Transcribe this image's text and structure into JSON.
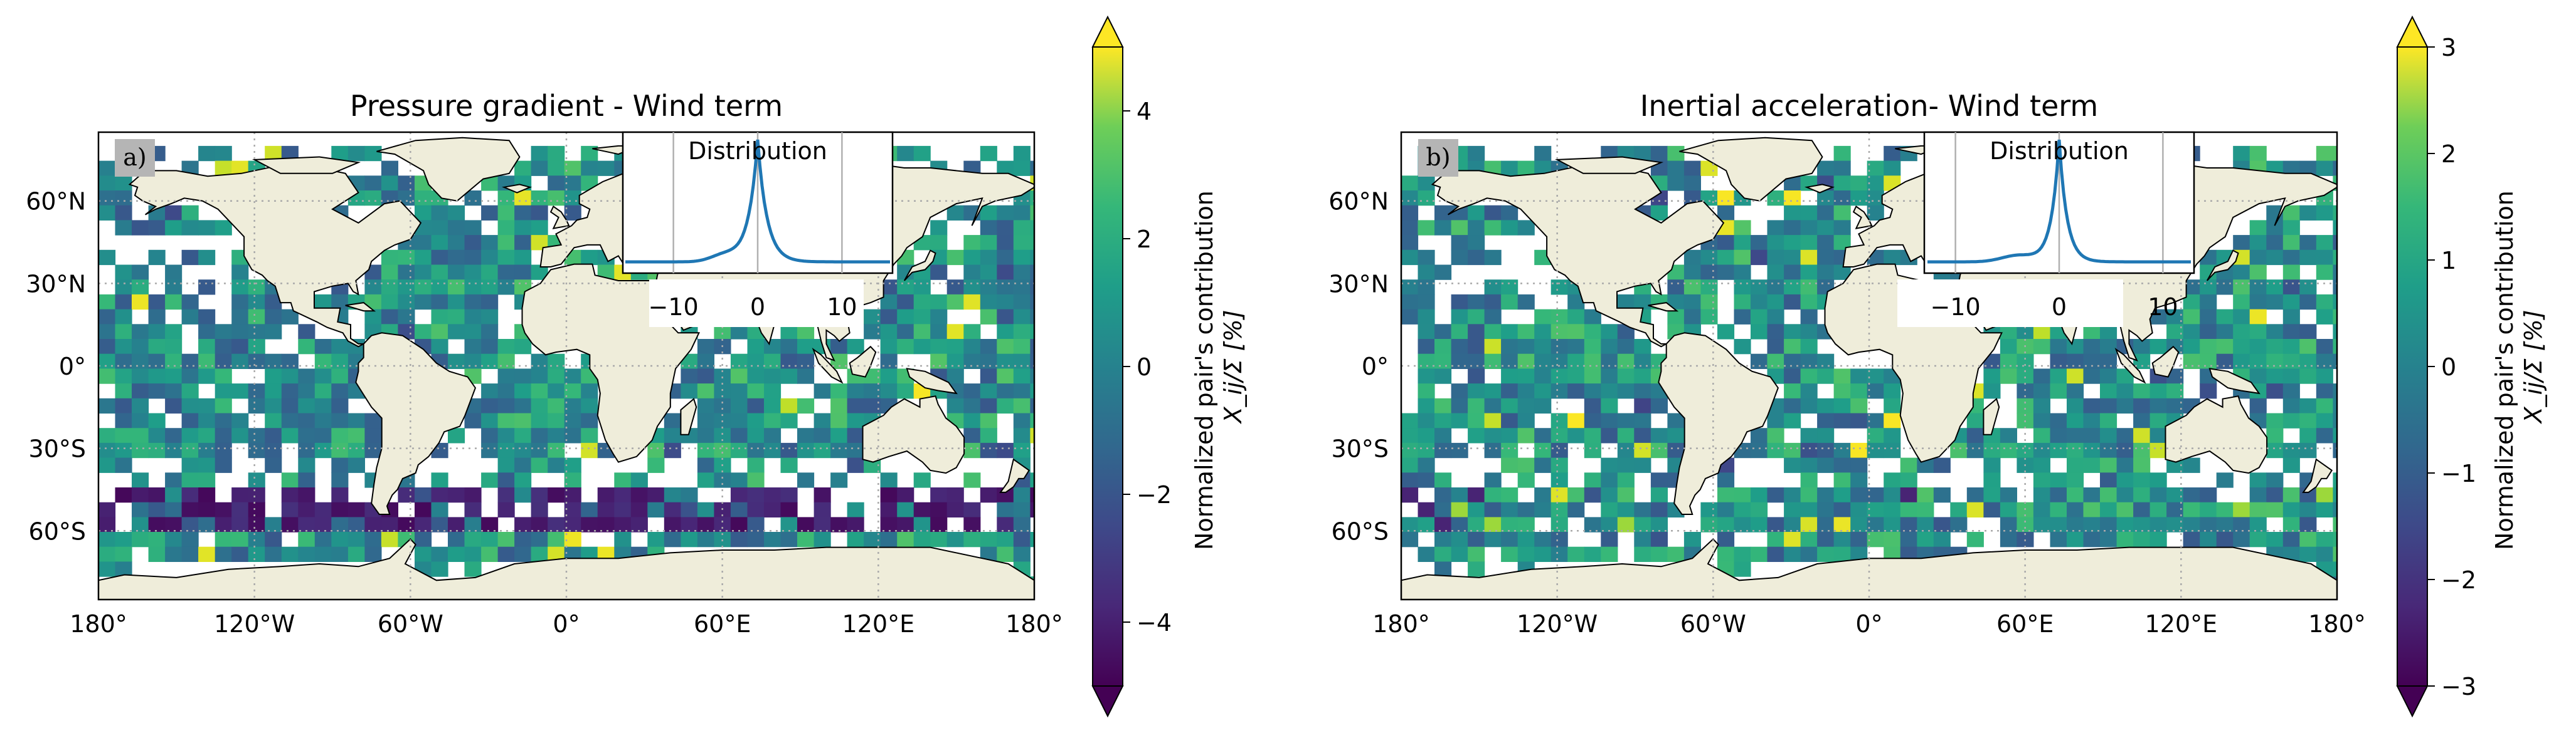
{
  "panels": [
    {
      "id": "a",
      "title": "Pressure gradient - Wind term",
      "tag": "a)",
      "inset": {
        "label": "Distribution",
        "ticks": [
          "−10",
          "0",
          "10"
        ],
        "tick_values": [
          -10,
          0,
          10
        ],
        "xlim": [
          -16,
          16
        ]
      },
      "lat_ticks": [
        "60°N",
        "30°N",
        "0°",
        "30°S",
        "60°S"
      ],
      "lon_ticks": [
        "180°",
        "120°W",
        "60°W",
        "0°",
        "60°E",
        "120°E",
        "180°"
      ],
      "colorbar": {
        "label_line1": "Normalized pair's contribution",
        "label_line2": "X_ij/Σ [%]",
        "range": [
          -5,
          5
        ],
        "ticks": [
          "4",
          "2",
          "0",
          "−2",
          "−4"
        ],
        "tick_values": [
          4,
          2,
          0,
          -2,
          -4
        ],
        "colormap": "viridis",
        "extend": "both"
      },
      "southern_ocean_band": "strongly negative"
    },
    {
      "id": "b",
      "title": "Inertial acceleration- Wind term",
      "tag": "b)",
      "inset": {
        "label": "Distribution",
        "ticks": [
          "−10",
          "0",
          "10"
        ],
        "tick_values": [
          -10,
          0,
          10
        ],
        "xlim": [
          -13,
          13
        ]
      },
      "lat_ticks": [
        "60°N",
        "30°N",
        "0°",
        "30°S",
        "60°S"
      ],
      "lon_ticks": [
        "180°",
        "120°W",
        "60°W",
        "0°",
        "60°E",
        "120°E",
        "180°"
      ],
      "colorbar": {
        "label_line1": "Normalized pair's contribution",
        "label_line2": "X_ij/Σ [%]",
        "range": [
          -3,
          3
        ],
        "ticks": [
          "3",
          "2",
          "1",
          "0",
          "−1",
          "−2",
          "−3"
        ],
        "tick_values": [
          3,
          2,
          1,
          0,
          -1,
          -2,
          -3
        ],
        "colormap": "viridis",
        "extend": "both"
      },
      "southern_ocean_band": "mixed"
    }
  ],
  "colors": {
    "land": "#efedda",
    "grid": "#aaaaaa",
    "inset_line": "#1f77b4",
    "tag_bg": "#b5b5b5"
  }
}
